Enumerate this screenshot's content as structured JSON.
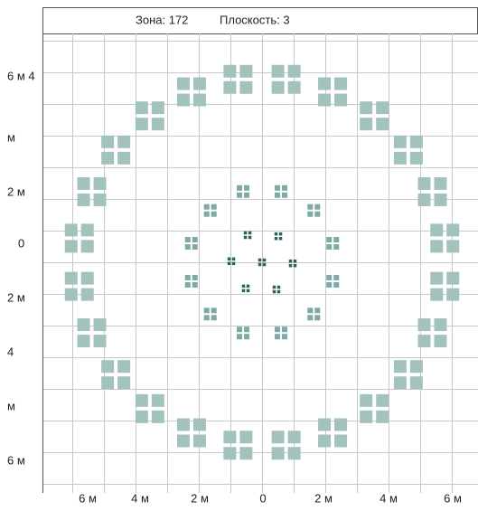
{
  "header": {
    "zone": "Зона: 172",
    "plane": "Плоскость: 3"
  },
  "axis": {
    "left": [
      "6 м 4",
      "м",
      "2 м",
      "0",
      "2 м",
      "4",
      "м",
      "6 м"
    ],
    "bottom": [
      "6 м",
      "4 м",
      "2 м",
      "0",
      "2 м",
      "4 м",
      "6 м"
    ]
  }
}
